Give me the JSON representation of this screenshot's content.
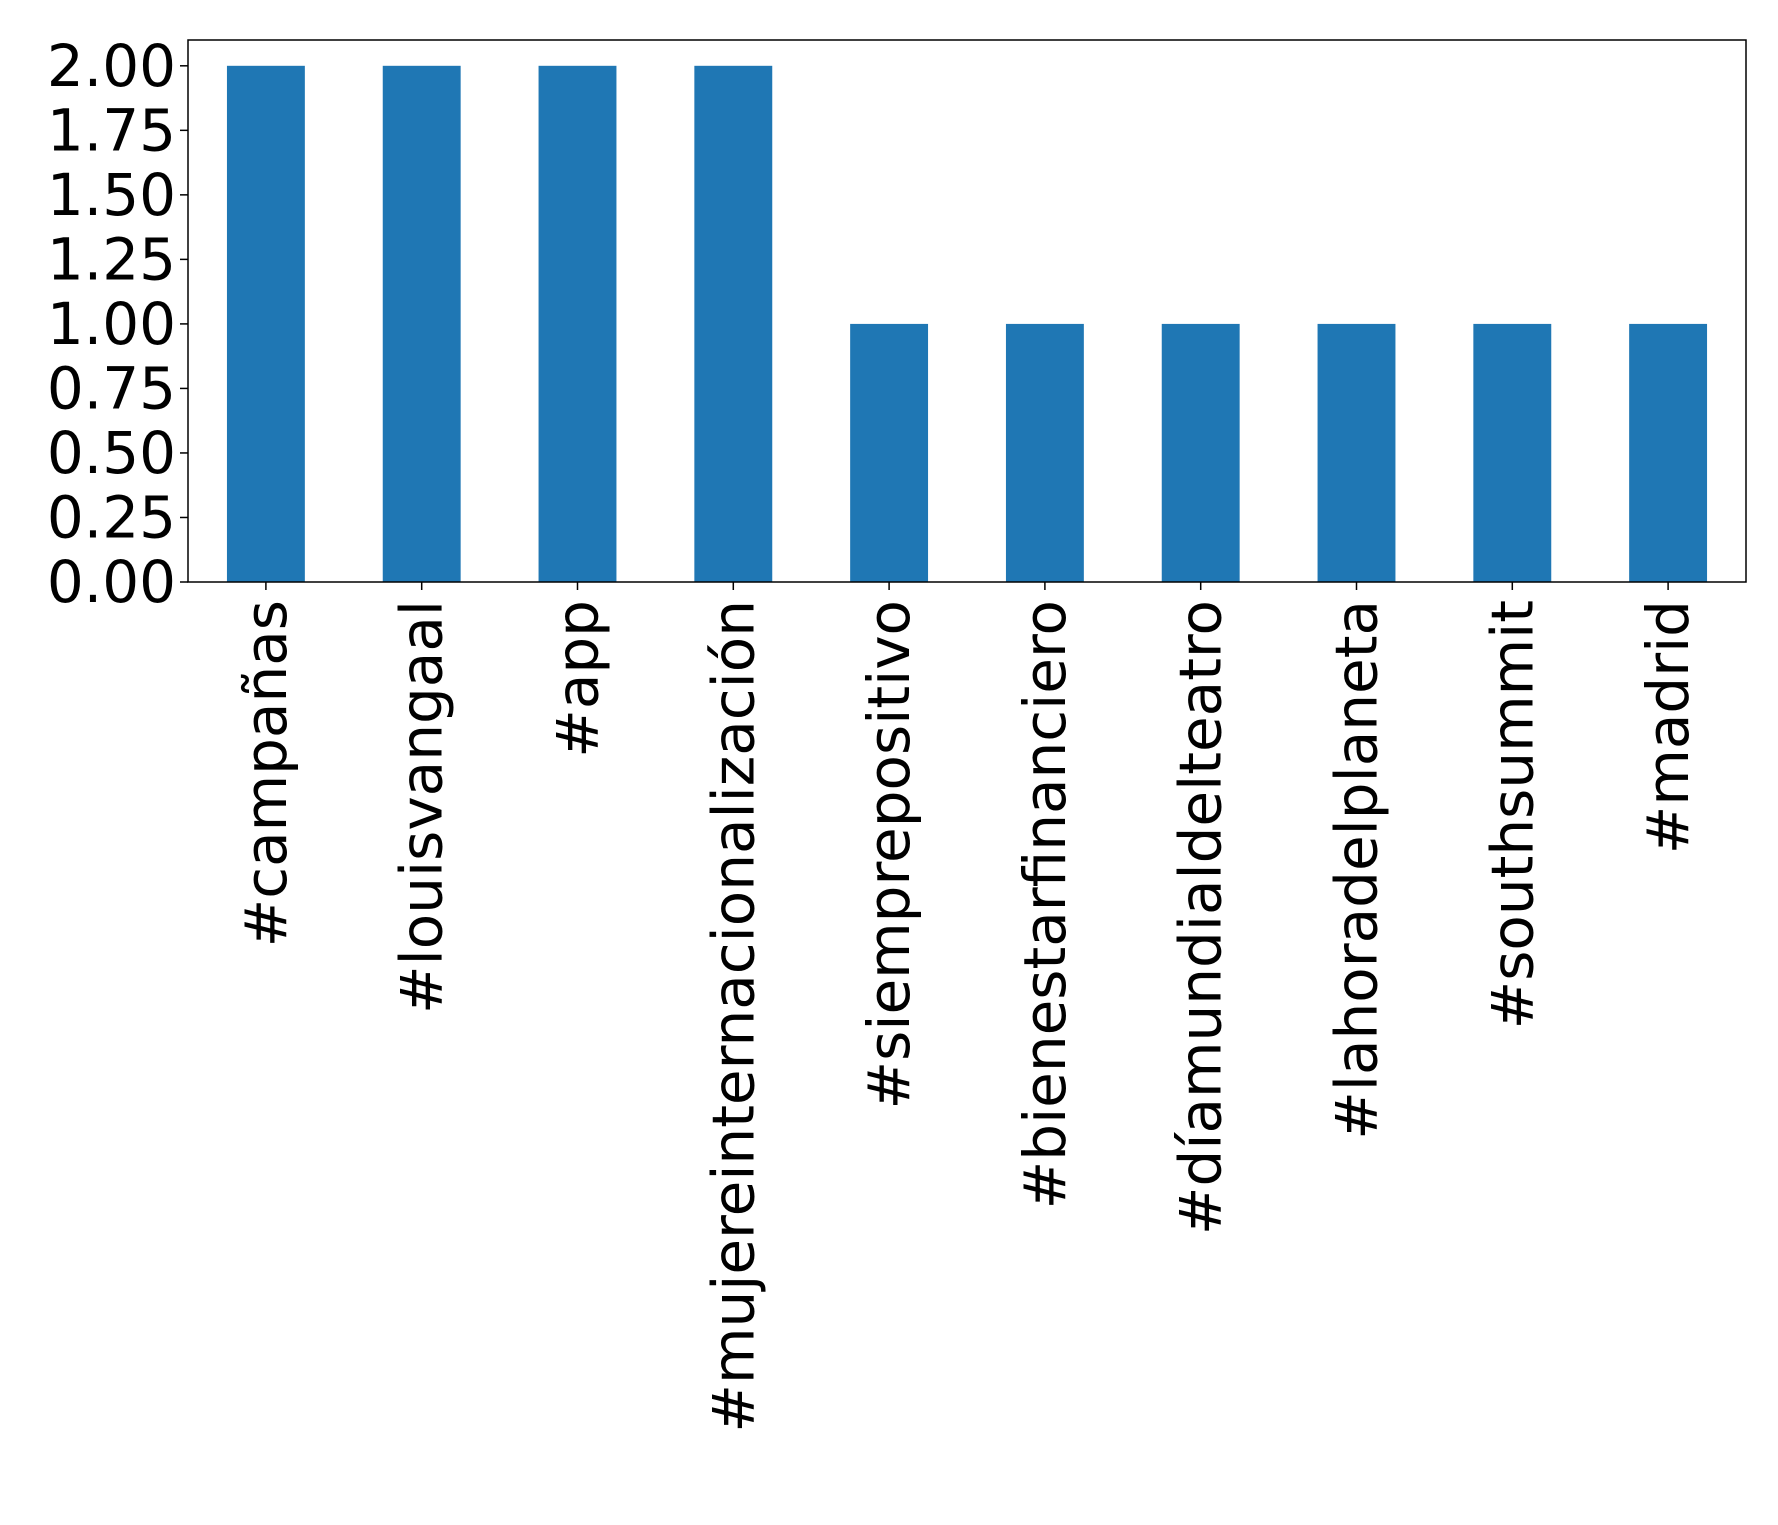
{
  "chart_data": {
    "type": "bar",
    "title": "",
    "xlabel": "",
    "ylabel": "",
    "categories": [
      "#campañas",
      "#louisvangaal",
      "#app",
      "#mujereinternacionalización",
      "#siemprepositivo",
      "#bienestarfinanciero",
      "#díamundialdelteatro",
      "#lahoradelplaneta",
      "#southsummit",
      "#madrid"
    ],
    "values": [
      2,
      2,
      2,
      2,
      1,
      1,
      1,
      1,
      1,
      1
    ],
    "ylim": [
      0,
      2.1
    ],
    "yticks": [
      "0.00",
      "0.25",
      "0.50",
      "0.75",
      "1.00",
      "1.25",
      "1.50",
      "1.75",
      "2.00"
    ],
    "grid": false,
    "legend": "none",
    "bar_color": "#1f77b4"
  }
}
